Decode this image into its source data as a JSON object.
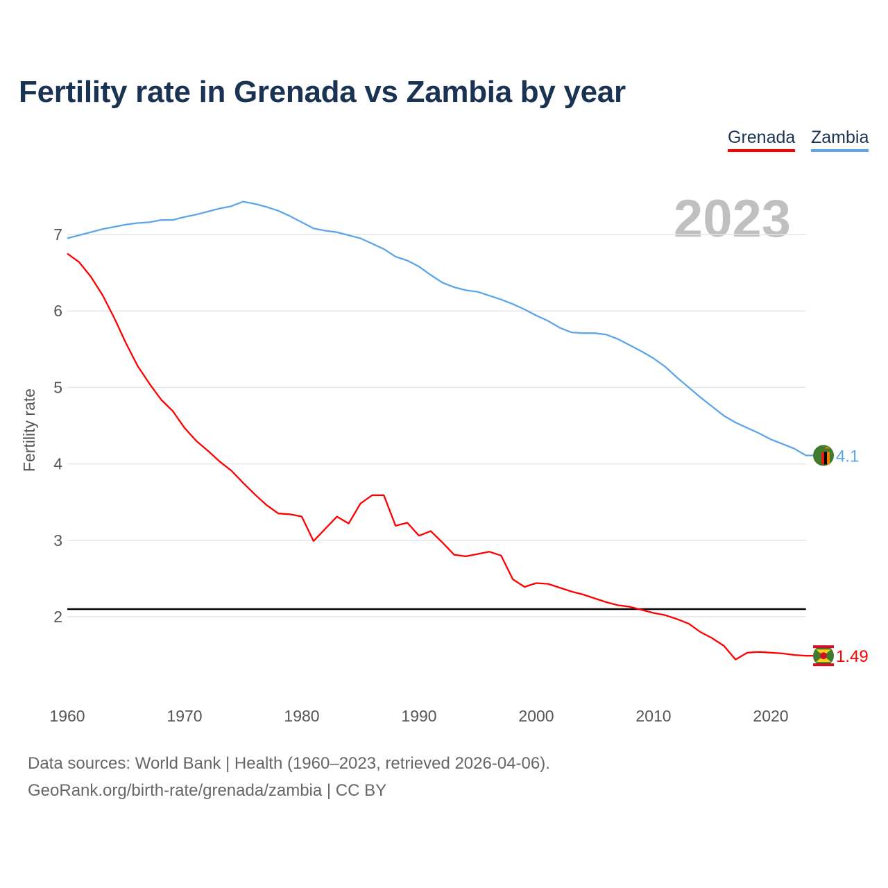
{
  "chart_data": {
    "type": "line",
    "title": "Fertility rate in Grenada vs Zambia by year",
    "ylabel": "Fertility rate",
    "xlabel": "",
    "xlim": [
      1960,
      2023
    ],
    "ylim": [
      1,
      7.5
    ],
    "x_ticks": [
      1960,
      1970,
      1980,
      1990,
      2000,
      2010,
      2020
    ],
    "y_ticks": [
      2,
      3,
      4,
      5,
      6,
      7
    ],
    "grid": true,
    "legend_position": "top-right",
    "year_label": "2023",
    "reference_line": 2.1,
    "colors": {
      "Grenada": "#ff0000",
      "Zambia": "#5da5ea",
      "reference": "#000000"
    },
    "x": [
      1960,
      1961,
      1962,
      1963,
      1964,
      1965,
      1966,
      1967,
      1968,
      1969,
      1970,
      1971,
      1972,
      1973,
      1974,
      1975,
      1976,
      1977,
      1978,
      1979,
      1980,
      1981,
      1982,
      1983,
      1984,
      1985,
      1986,
      1987,
      1988,
      1989,
      1990,
      1991,
      1992,
      1993,
      1994,
      1995,
      1996,
      1997,
      1998,
      1999,
      2000,
      2001,
      2002,
      2003,
      2004,
      2005,
      2006,
      2007,
      2008,
      2009,
      2010,
      2011,
      2012,
      2013,
      2014,
      2015,
      2016,
      2017,
      2018,
      2019,
      2020,
      2021,
      2022,
      2023
    ],
    "series": [
      {
        "name": "Grenada",
        "end_label": "1.49",
        "flag": "grenada-flag",
        "values": [
          6.75,
          6.64,
          6.45,
          6.21,
          5.91,
          5.58,
          5.28,
          5.05,
          4.84,
          4.69,
          4.47,
          4.3,
          4.17,
          4.03,
          3.91,
          3.75,
          3.6,
          3.46,
          3.35,
          3.34,
          3.31,
          2.99,
          3.15,
          3.31,
          3.22,
          3.48,
          3.59,
          3.59,
          3.19,
          3.23,
          3.06,
          3.12,
          2.97,
          2.81,
          2.79,
          2.82,
          2.85,
          2.8,
          2.49,
          2.39,
          2.44,
          2.43,
          2.38,
          2.33,
          2.29,
          2.24,
          2.19,
          2.15,
          2.13,
          2.09,
          2.05,
          2.02,
          1.97,
          1.91,
          1.8,
          1.72,
          1.62,
          1.44,
          1.53,
          1.54,
          1.53,
          1.52,
          1.5,
          1.49
        ]
      },
      {
        "name": "Zambia",
        "end_label": "4.1",
        "flag": "zambia-flag",
        "values": [
          6.95,
          6.99,
          7.03,
          7.07,
          7.1,
          7.13,
          7.15,
          7.16,
          7.19,
          7.19,
          7.23,
          7.26,
          7.3,
          7.34,
          7.37,
          7.43,
          7.4,
          7.36,
          7.31,
          7.24,
          7.16,
          7.08,
          7.05,
          7.03,
          6.99,
          6.95,
          6.88,
          6.81,
          6.71,
          6.66,
          6.58,
          6.47,
          6.37,
          6.31,
          6.27,
          6.25,
          6.2,
          6.15,
          6.09,
          6.02,
          5.94,
          5.87,
          5.78,
          5.72,
          5.71,
          5.71,
          5.69,
          5.63,
          5.55,
          5.47,
          5.38,
          5.27,
          5.13,
          5.0,
          4.87,
          4.75,
          4.63,
          4.54,
          4.47,
          4.4,
          4.32,
          4.26,
          4.2,
          4.11
        ]
      }
    ]
  },
  "footer": {
    "line1": "Data sources: World Bank | Health (1960–2023, retrieved 2026-04-06).",
    "line2": "GeoRank.org/birth-rate/grenada/zambia | CC BY"
  }
}
